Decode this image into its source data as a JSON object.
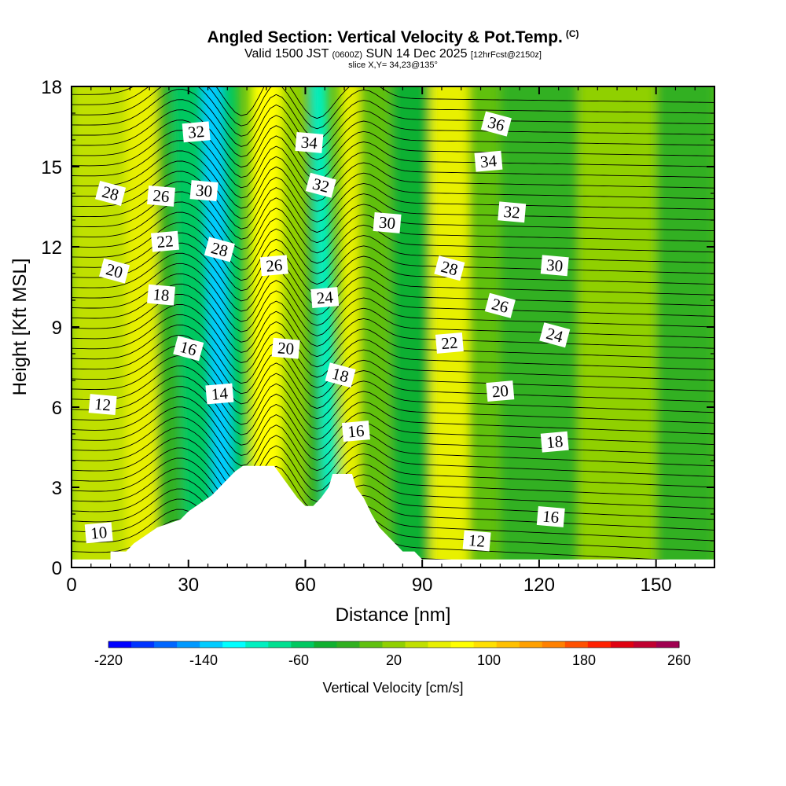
{
  "title": {
    "main": "Angled Section: Vertical Velocity & Pot.Temp.",
    "copyright": "(C)",
    "valid_prefix": "Valid 1500 JST",
    "valid_utc": "(0600Z)",
    "valid_date": "SUN 14 Dec 2025",
    "forecast": "[12hrFcst@2150z]",
    "slice": "slice X,Y= 34,23@135°"
  },
  "chart_data": {
    "type": "heatmap",
    "xlabel": "Distance [nm]",
    "ylabel": "Height [Kft MSL]",
    "xlim": [
      0,
      165
    ],
    "ylim": [
      0,
      18
    ],
    "x_ticks": [
      0,
      30,
      60,
      90,
      120,
      150
    ],
    "y_ticks": [
      0,
      3,
      6,
      9,
      12,
      15,
      18
    ],
    "colorbar": {
      "label": "Vertical Velocity [cm/s]",
      "min": -220,
      "max": 260,
      "step": 20,
      "tick_labels": [
        -220,
        -140,
        -60,
        20,
        100,
        180,
        260
      ],
      "colors": [
        "#0000ff",
        "#0033ff",
        "#0066ff",
        "#0099ff",
        "#00ccff",
        "#00ffff",
        "#00f0c0",
        "#00e090",
        "#00c860",
        "#10b030",
        "#30b020",
        "#60c010",
        "#90d000",
        "#c0e000",
        "#e8f000",
        "#ffff00",
        "#ffe000",
        "#ffc000",
        "#ffa000",
        "#ff8000",
        "#ff5000",
        "#ff2000",
        "#e00010",
        "#c00030",
        "#a00050",
        "#800070"
      ]
    },
    "terrain_profile": [
      [
        0,
        0.3
      ],
      [
        10,
        0.3
      ],
      [
        10,
        0.6
      ],
      [
        14,
        0.6
      ],
      [
        16,
        0.9
      ],
      [
        19,
        1.2
      ],
      [
        22,
        1.5
      ],
      [
        28,
        1.8
      ],
      [
        30,
        2.1
      ],
      [
        33,
        2.4
      ],
      [
        36,
        2.7
      ],
      [
        38,
        3.0
      ],
      [
        40,
        3.3
      ],
      [
        42,
        3.6
      ],
      [
        44,
        3.8
      ],
      [
        52,
        3.8
      ],
      [
        54,
        3.4
      ],
      [
        56,
        3.0
      ],
      [
        58,
        2.6
      ],
      [
        60,
        2.3
      ],
      [
        62,
        2.3
      ],
      [
        64,
        2.6
      ],
      [
        66,
        3.0
      ],
      [
        67,
        3.5
      ],
      [
        72,
        3.5
      ],
      [
        73,
        3.0
      ],
      [
        75,
        2.6
      ],
      [
        77,
        2.0
      ],
      [
        79,
        1.5
      ],
      [
        81,
        1.2
      ],
      [
        83,
        0.9
      ],
      [
        85,
        0.6
      ],
      [
        88,
        0.6
      ],
      [
        90,
        0.3
      ],
      [
        165,
        0.3
      ]
    ],
    "theta_contour_labels": [
      {
        "value": "10",
        "x": 7,
        "y": 1.3
      },
      {
        "value": "12",
        "x": 8,
        "y": 6.1
      },
      {
        "value": "16",
        "x": 30,
        "y": 8.2
      },
      {
        "value": "14",
        "x": 38,
        "y": 6.5
      },
      {
        "value": "18",
        "x": 23,
        "y": 10.2
      },
      {
        "value": "20",
        "x": 11,
        "y": 11.1
      },
      {
        "value": "22",
        "x": 24,
        "y": 12.2
      },
      {
        "value": "26",
        "x": 23,
        "y": 13.9
      },
      {
        "value": "28",
        "x": 10,
        "y": 14.0
      },
      {
        "value": "32",
        "x": 32,
        "y": 16.3
      },
      {
        "value": "30",
        "x": 34,
        "y": 14.1
      },
      {
        "value": "28",
        "x": 38,
        "y": 11.9
      },
      {
        "value": "26",
        "x": 52,
        "y": 11.3
      },
      {
        "value": "34",
        "x": 61,
        "y": 15.9
      },
      {
        "value": "32",
        "x": 64,
        "y": 14.3
      },
      {
        "value": "24",
        "x": 65,
        "y": 10.1
      },
      {
        "value": "20",
        "x": 55,
        "y": 8.2
      },
      {
        "value": "18",
        "x": 69,
        "y": 7.2
      },
      {
        "value": "16",
        "x": 73,
        "y": 5.1
      },
      {
        "value": "30",
        "x": 81,
        "y": 12.9
      },
      {
        "value": "28",
        "x": 97,
        "y": 11.2
      },
      {
        "value": "22",
        "x": 97,
        "y": 8.4
      },
      {
        "value": "12",
        "x": 104,
        "y": 1.0
      },
      {
        "value": "36",
        "x": 109,
        "y": 16.6
      },
      {
        "value": "34",
        "x": 107,
        "y": 15.2
      },
      {
        "value": "32",
        "x": 113,
        "y": 13.3
      },
      {
        "value": "26",
        "x": 110,
        "y": 9.8
      },
      {
        "value": "20",
        "x": 110,
        "y": 6.6
      },
      {
        "value": "30",
        "x": 124,
        "y": 11.3
      },
      {
        "value": "24",
        "x": 124,
        "y": 8.7
      },
      {
        "value": "18",
        "x": 124,
        "y": 4.7
      },
      {
        "value": "16",
        "x": 123,
        "y": 1.9
      }
    ],
    "velocity_bands": [
      {
        "x": 0,
        "w": 14,
        "value": 40
      },
      {
        "x": 14,
        "w": 8,
        "value": 60
      },
      {
        "x": 22,
        "w": 7,
        "value": -20
      },
      {
        "x": 29,
        "w": 8,
        "value": -60
      },
      {
        "x": 37,
        "w": 5,
        "value": -140
      },
      {
        "x": 42,
        "w": 4,
        "value": -60
      },
      {
        "x": 46,
        "w": 8,
        "value": 80
      },
      {
        "x": 54,
        "w": 6,
        "value": 20
      },
      {
        "x": 60,
        "w": 5,
        "value": -20
      },
      {
        "x": 65,
        "w": 4,
        "value": -100
      },
      {
        "x": 69,
        "w": 5,
        "value": 60
      },
      {
        "x": 74,
        "w": 8,
        "value": 0
      },
      {
        "x": 82,
        "w": 10,
        "value": -40
      },
      {
        "x": 92,
        "w": 10,
        "value": 60
      },
      {
        "x": 102,
        "w": 8,
        "value": 0
      },
      {
        "x": 110,
        "w": 20,
        "value": -20
      },
      {
        "x": 130,
        "w": 20,
        "value": 20
      },
      {
        "x": 150,
        "w": 15,
        "value": -20
      }
    ]
  }
}
